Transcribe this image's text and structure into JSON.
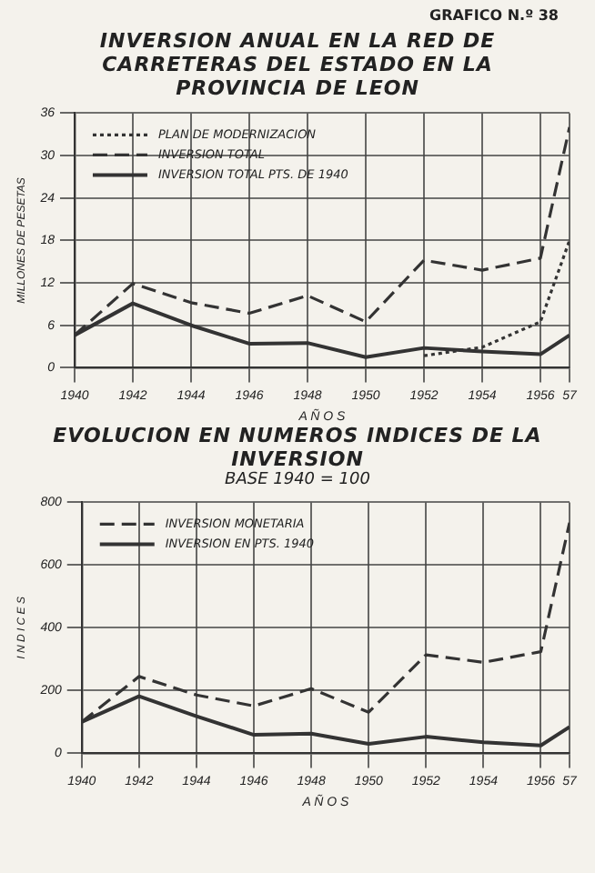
{
  "chart_data": [
    {
      "type": "line",
      "title": "INVERSION ANUAL EN LA RED DE CARRETERAS DEL ESTADO EN LA PROVINCIA DE LEON",
      "annotations": [
        "GRAFICO N.º 38"
      ],
      "xlabel": "A Ñ O S",
      "ylabel": "MILLONES DE PESETAS",
      "x": [
        1940,
        1942,
        1944,
        1946,
        1948,
        1950,
        1952,
        1954,
        1956,
        1957
      ],
      "series": [
        {
          "name": "PLAN DE MODERNIZACION",
          "color": "#333333",
          "line_style": "dotted",
          "values": [
            null,
            null,
            null,
            null,
            null,
            null,
            1.7,
            2.9,
            6.5,
            18
          ]
        },
        {
          "name": "INVERSION TOTAL",
          "color": "#333333",
          "line_style": "dashed",
          "values": [
            4.6,
            11.9,
            9.2,
            7.7,
            10.2,
            6.5,
            15.2,
            13.8,
            15.5,
            34
          ]
        },
        {
          "name": "INVERSION TOTAL PTS. DE 1940",
          "color": "#333333",
          "line_style": "solid",
          "values": [
            4.6,
            9.1,
            6,
            3.4,
            3.5,
            1.5,
            2.8,
            2.3,
            1.9,
            4.6
          ]
        }
      ],
      "xlim": [
        1940,
        1957
      ],
      "xticks": [
        1940,
        1942,
        1944,
        1946,
        1948,
        1950,
        1952,
        1954,
        1956,
        {
          "value": 1957,
          "label": "57"
        }
      ],
      "ylim": [
        0,
        36
      ],
      "yticks": [
        0,
        6,
        12,
        18,
        24,
        30,
        36
      ],
      "grid": true,
      "legend": "top left",
      "marker": "none"
    },
    {
      "type": "line",
      "title": "EVOLUCION EN NUMEROS INDICES DE LA INVERSION",
      "subtitle": "BASE 1940 = 100",
      "xlabel": "A Ñ O S",
      "ylabel": "I N D I C E S",
      "x": [
        1940,
        1942,
        1944,
        1946,
        1948,
        1950,
        1952,
        1954,
        1956,
        1957
      ],
      "series": [
        {
          "name": "INVERSION MONETARIA",
          "color": "#333333",
          "line_style": "dashed",
          "values": [
            100,
            245,
            186,
            151,
            206,
            131,
            314,
            290,
            324,
            735
          ]
        },
        {
          "name": "INVERSION EN PTS. 1940",
          "color": "#333333",
          "line_style": "solid",
          "values": [
            100,
            182,
            118,
            59,
            63,
            30,
            53,
            35,
            25,
            84
          ]
        }
      ],
      "xlim": [
        1940,
        1957
      ],
      "xticks": [
        1940,
        1942,
        1944,
        1946,
        1948,
        1950,
        1952,
        1954,
        1956,
        {
          "value": 1957,
          "label": "57"
        }
      ],
      "ylim": [
        0,
        800
      ],
      "yticks": [
        0,
        200,
        400,
        600,
        800
      ],
      "grid": true,
      "legend": "top left",
      "marker": "none"
    }
  ]
}
